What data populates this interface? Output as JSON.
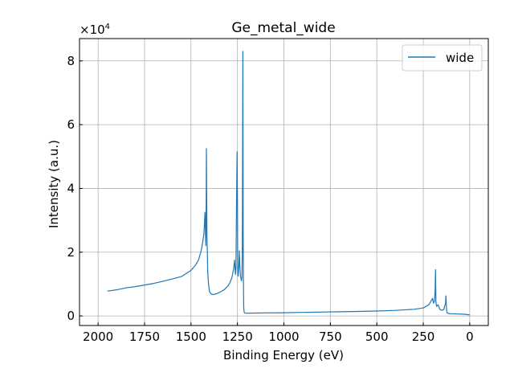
{
  "figure": {
    "title": "Ge_metal_wide",
    "xlabel": "Binding Energy (eV)",
    "ylabel": "Intensity (a.u.)",
    "y_multiplier_base": "×10",
    "y_multiplier_exponent": "4"
  },
  "chart_data": {
    "type": "line",
    "title": "Ge_metal_wide",
    "xlabel": "Binding Energy (eV)",
    "ylabel": "Intensity (a.u.)",
    "x_inverted": true,
    "xlim": [
      2100,
      -100
    ],
    "ylim": [
      -3000,
      87000
    ],
    "y_scale_label": "×10^4",
    "grid": true,
    "legend_position": "top-right",
    "x_ticks": [
      2000,
      1750,
      1500,
      1250,
      1000,
      750,
      500,
      250,
      0
    ],
    "x_tick_labels": [
      "2000",
      "1750",
      "1500",
      "1250",
      "1000",
      "750",
      "500",
      "250",
      "0"
    ],
    "y_ticks": [
      0,
      20000,
      40000,
      60000,
      80000
    ],
    "y_tick_labels": [
      "0",
      "2",
      "4",
      "6",
      "8"
    ],
    "series": [
      {
        "name": "wide",
        "color": "#1f77b4",
        "x": [
          1950,
          1900,
          1850,
          1800,
          1750,
          1700,
          1650,
          1600,
          1550,
          1500,
          1475,
          1460,
          1450,
          1445,
          1440,
          1435,
          1430,
          1425,
          1420,
          1418,
          1417,
          1416,
          1414,
          1412,
          1410,
          1405,
          1400,
          1390,
          1380,
          1360,
          1340,
          1320,
          1300,
          1290,
          1280,
          1275,
          1270,
          1266,
          1264,
          1262,
          1260,
          1258,
          1255,
          1252,
          1250,
          1249,
          1248,
          1246,
          1244,
          1242,
          1240,
          1238,
          1236,
          1234,
          1232,
          1230,
          1228,
          1226,
          1224,
          1222,
          1221,
          1220,
          1219,
          1218,
          1217,
          1216,
          1214,
          1212,
          1210,
          1200,
          1150,
          1100,
          1000,
          900,
          800,
          700,
          600,
          500,
          400,
          300,
          250,
          220,
          210,
          200,
          195,
          190,
          186,
          184,
          183,
          182,
          180,
          178,
          175,
          170,
          160,
          150,
          140,
          135,
          130,
          128,
          126,
          124,
          122,
          120,
          115,
          110,
          100,
          80,
          60,
          40,
          20,
          10,
          0
        ],
        "y": [
          7800,
          8200,
          8800,
          9200,
          9700,
          10200,
          10900,
          11600,
          12400,
          14300,
          16000,
          17500,
          19500,
          20500,
          22000,
          24000,
          26000,
          32500,
          22000,
          38000,
          52500,
          40000,
          25000,
          20000,
          14000,
          9500,
          7500,
          6800,
          6700,
          7000,
          7600,
          8300,
          9500,
          10500,
          12000,
          13500,
          15000,
          17500,
          16000,
          14000,
          13000,
          15000,
          35000,
          51500,
          35000,
          18000,
          13500,
          12500,
          14000,
          16500,
          20500,
          17000,
          14500,
          12500,
          12000,
          11500,
          11000,
          12000,
          20000,
          55000,
          83000,
          60000,
          25000,
          12000,
          6000,
          2500,
          1200,
          1000,
          900,
          850,
          900,
          950,
          1000,
          1100,
          1200,
          1300,
          1400,
          1550,
          1750,
          2100,
          2500,
          3500,
          4500,
          5500,
          4000,
          4500,
          8000,
          14500,
          10000,
          4500,
          3500,
          3000,
          3200,
          3500,
          2000,
          1800,
          2000,
          3000,
          4000,
          6300,
          3500,
          1500,
          1000,
          900,
          800,
          750,
          700,
          650,
          600,
          550,
          500,
          400,
          300
        ]
      }
    ]
  }
}
